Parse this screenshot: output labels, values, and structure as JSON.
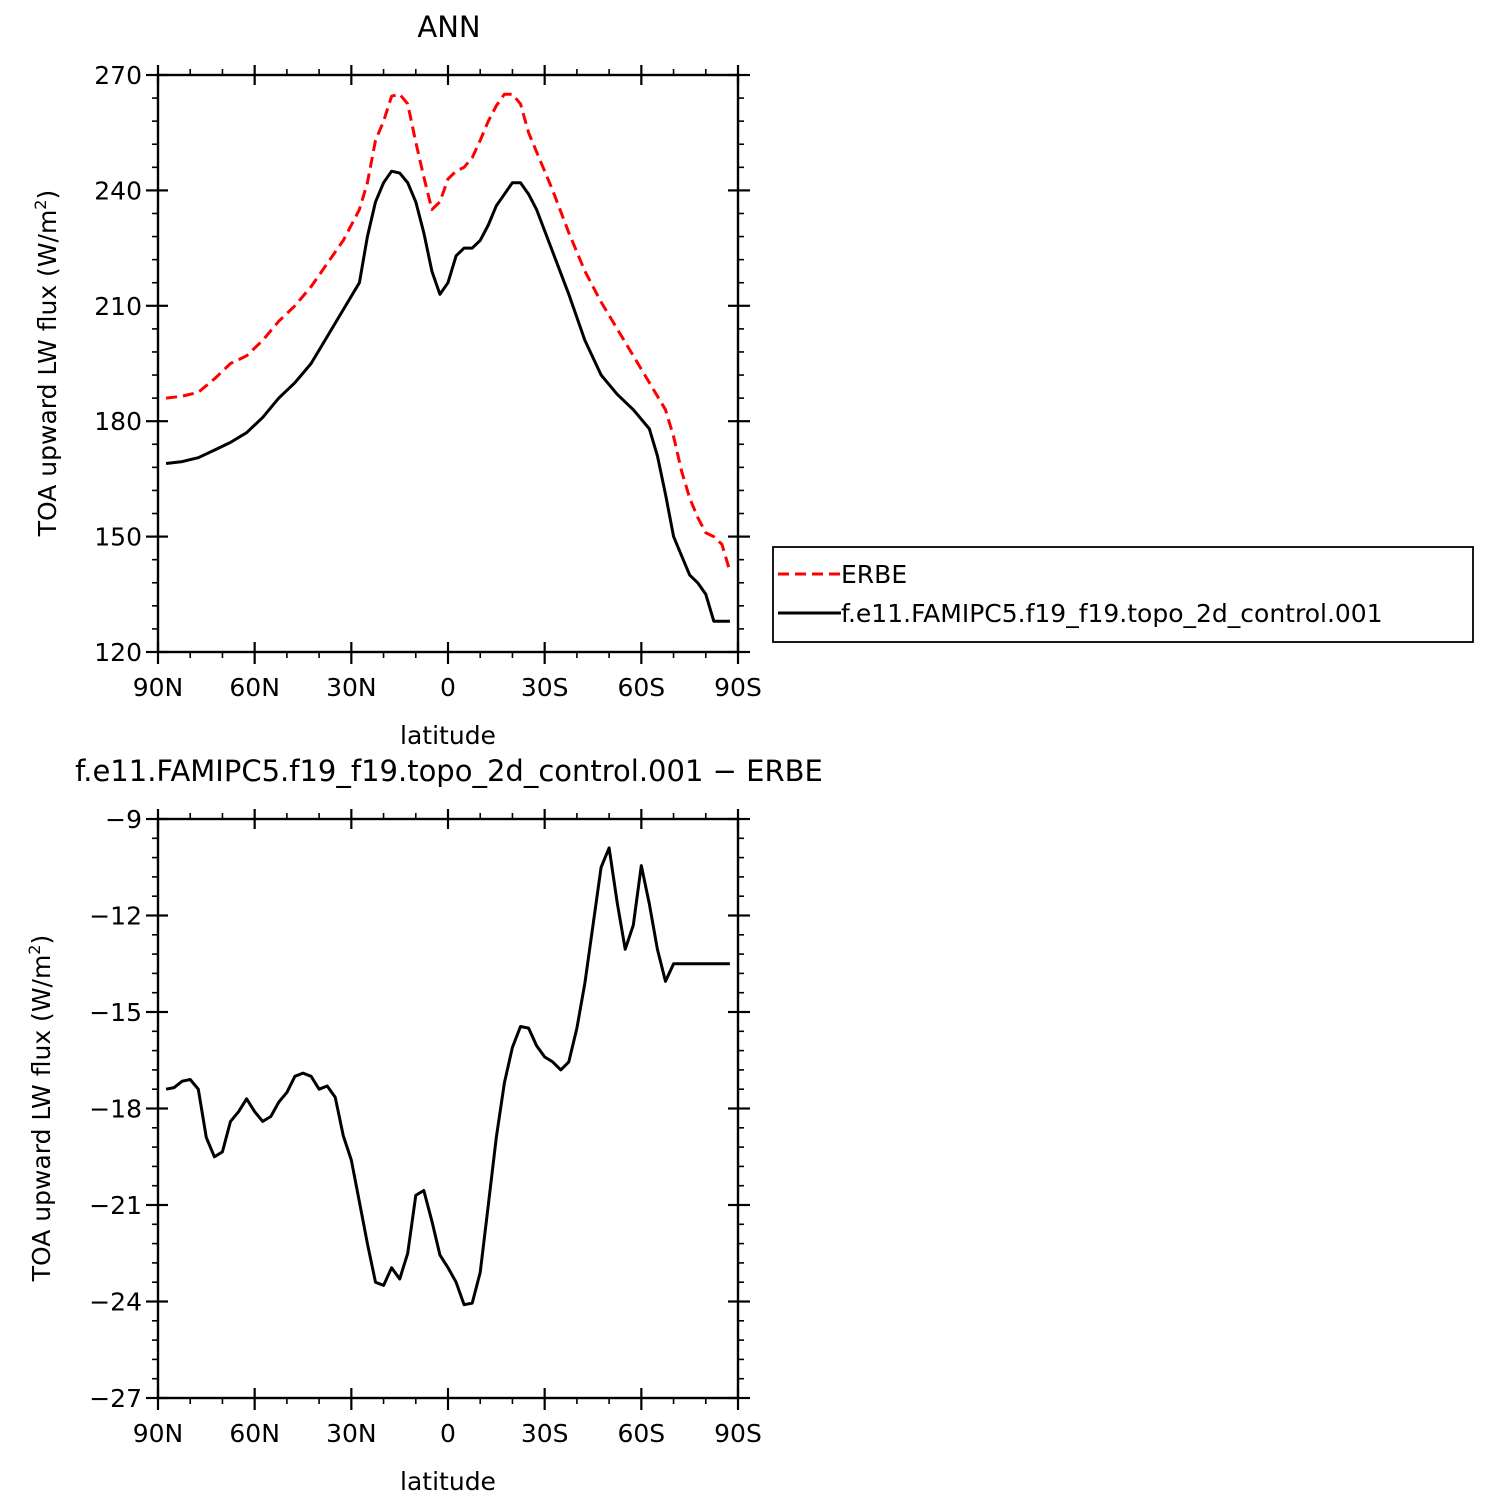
{
  "chart_data": [
    {
      "type": "line",
      "title": "ANN",
      "xlabel": "latitude",
      "ylabel": "TOA upward LW flux (W/m",
      "ylabel_sup": "2",
      "ylabel_end": ")",
      "xlim": [
        -90,
        90
      ],
      "ylim": [
        120,
        270
      ],
      "xticks": [
        -90,
        -60,
        -30,
        0,
        30,
        60,
        90
      ],
      "xtick_labels": [
        "90N",
        "60N",
        "30N",
        "0",
        "30S",
        "60S",
        "90S"
      ],
      "yticks": [
        120,
        150,
        180,
        210,
        240,
        270
      ],
      "ytick_labels": [
        "120",
        "150",
        "180",
        "210",
        "240",
        "270"
      ],
      "legend": "right",
      "series": [
        {
          "name": "ERBE",
          "color": "#ff0000",
          "style": "dashed",
          "x": [
            -87.5,
            -82.5,
            -77.5,
            -72.5,
            -67.5,
            -62.5,
            -57.5,
            -52.5,
            -47.5,
            -42.5,
            -37.5,
            -32.5,
            -27.5,
            -25,
            -22.5,
            -20,
            -17.5,
            -15,
            -12.5,
            -10,
            -7.5,
            -5,
            -2.5,
            0,
            2.5,
            5,
            7.5,
            10,
            12.5,
            15,
            17.5,
            20,
            22.5,
            25,
            27.5,
            32.5,
            37.5,
            42.5,
            47.5,
            52.5,
            57.5,
            62.5,
            67.5,
            70,
            72.5,
            75,
            77.5,
            80,
            82.5,
            85,
            87.5
          ],
          "y": [
            186,
            186.5,
            187.5,
            191,
            195,
            197,
            201,
            206,
            210,
            215,
            221,
            227,
            235,
            242,
            253,
            258,
            264.5,
            265,
            262.5,
            252.5,
            243.5,
            235,
            237,
            243,
            245,
            246,
            248.5,
            253,
            258,
            262,
            265,
            265,
            262.5,
            255,
            250,
            240,
            229,
            219,
            211,
            204,
            197,
            190,
            183,
            176,
            167,
            160,
            155,
            151,
            150,
            148,
            141
          ]
        },
        {
          "name": "f.e11.FAMIPC5.f19_f19.topo_2d_control.001",
          "color": "#000000",
          "style": "solid",
          "x": [
            -87.5,
            -82.5,
            -77.5,
            -72.5,
            -67.5,
            -62.5,
            -57.5,
            -52.5,
            -47.5,
            -42.5,
            -37.5,
            -32.5,
            -27.5,
            -25,
            -22.5,
            -20,
            -17.5,
            -15,
            -12.5,
            -10,
            -7.5,
            -5,
            -2.5,
            0,
            2.5,
            5,
            7.5,
            10,
            12.5,
            15,
            17.5,
            20,
            22.5,
            25,
            27.5,
            32.5,
            37.5,
            42.5,
            47.5,
            52.5,
            57.5,
            62.5,
            65,
            67.5,
            70,
            72.5,
            75,
            77.5,
            80,
            82.5,
            85,
            87.5
          ],
          "y": [
            169,
            169.5,
            170.5,
            172.5,
            174.5,
            177,
            181,
            186,
            190,
            195,
            202,
            209,
            216,
            228,
            237,
            242,
            245,
            244.5,
            242,
            237,
            229,
            219,
            213,
            216,
            223,
            225,
            225,
            227,
            231,
            236,
            239,
            242,
            242,
            239,
            235,
            224,
            213,
            201,
            192,
            187,
            183,
            178,
            171,
            161,
            150,
            145,
            140,
            138,
            135,
            128,
            128,
            128
          ]
        }
      ]
    },
    {
      "type": "line",
      "title": "f.e11.FAMIPC5.f19_f19.topo_2d_control.001  −  ERBE",
      "xlabel": "latitude",
      "ylabel": "TOA upward LW flux (W/m",
      "ylabel_sup": "2",
      "ylabel_end": ")",
      "xlim": [
        -90,
        90
      ],
      "ylim": [
        -27,
        -9
      ],
      "xticks": [
        -90,
        -60,
        -30,
        0,
        30,
        60,
        90
      ],
      "xtick_labels": [
        "90N",
        "60N",
        "30N",
        "0",
        "30S",
        "60S",
        "90S"
      ],
      "yticks": [
        -27,
        -24,
        -21,
        -18,
        -15,
        -12,
        -9
      ],
      "ytick_labels": [
        "−27",
        "−24",
        "−21",
        "−18",
        "−15",
        "−12",
        "−9"
      ],
      "series": [
        {
          "color": "#000000",
          "style": "solid",
          "x": [
            -87.5,
            -85,
            -82.5,
            -80,
            -77.5,
            -75,
            -72.5,
            -70,
            -67.5,
            -65,
            -62.5,
            -60,
            -57.5,
            -55,
            -52.5,
            -50,
            -47.5,
            -45,
            -42.5,
            -40,
            -37.5,
            -35,
            -32.5,
            -30,
            -27.5,
            -25,
            -22.5,
            -20,
            -17.5,
            -15,
            -12.5,
            -10,
            -7.5,
            -5,
            -2.5,
            0,
            2.5,
            5,
            7.5,
            10,
            12.5,
            15,
            17.5,
            20,
            22.5,
            25,
            27.5,
            30,
            32.5,
            35,
            37.5,
            40,
            42.5,
            45,
            47.5,
            50,
            52.5,
            55,
            57.5,
            60,
            62.5,
            65,
            67.5,
            70,
            72.5,
            75,
            77.5,
            80,
            82.5,
            85,
            87.5
          ],
          "y": [
            -17.4,
            -17.35,
            -17.15,
            -17.1,
            -17.4,
            -18.9,
            -19.5,
            -19.35,
            -18.4,
            -18.1,
            -17.7,
            -18.1,
            -18.4,
            -18.25,
            -17.8,
            -17.5,
            -17,
            -16.9,
            -17,
            -17.4,
            -17.3,
            -17.65,
            -18.85,
            -19.6,
            -20.9,
            -22.2,
            -23.4,
            -23.5,
            -22.95,
            -23.3,
            -22.5,
            -20.7,
            -20.55,
            -21.5,
            -22.55,
            -22.95,
            -23.4,
            -24.1,
            -24.05,
            -23.1,
            -21,
            -18.9,
            -17.2,
            -16.1,
            -15.45,
            -15.5,
            -16.05,
            -16.4,
            -16.55,
            -16.8,
            -16.55,
            -15.5,
            -14.1,
            -12.3,
            -10.5,
            -9.9,
            -11.6,
            -13.05,
            -12.3,
            -10.45,
            -11.65,
            -13.05,
            -14.05,
            -13.5,
            -13.5,
            -13.5,
            -13.5,
            -13.5,
            -13.5,
            -13.5,
            -13.5
          ]
        }
      ]
    }
  ]
}
